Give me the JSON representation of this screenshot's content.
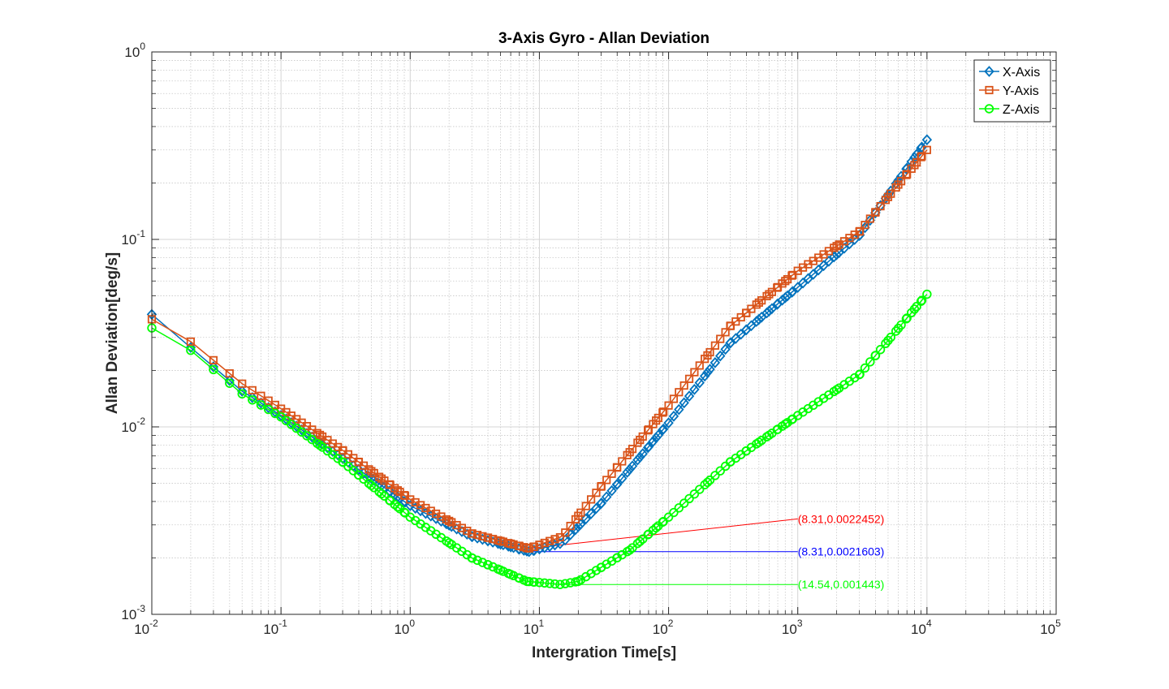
{
  "chart_data": {
    "type": "line",
    "title": "3-Axis Gyro - Allan Deviation",
    "xlabel": "Intergration Time[s]",
    "ylabel": "Allan Deviation[deg/s]",
    "xscale": "log",
    "yscale": "log",
    "xlim": [
      0.01,
      100000
    ],
    "ylim": [
      0.001,
      1
    ],
    "grid": true,
    "minor_grid": true,
    "legend_position": "top-right",
    "x_ticks": [
      {
        "base": "10",
        "exp": "-2",
        "value": 0.01
      },
      {
        "base": "10",
        "exp": "-1",
        "value": 0.1
      },
      {
        "base": "10",
        "exp": "0",
        "value": 1
      },
      {
        "base": "10",
        "exp": "1",
        "value": 10
      },
      {
        "base": "10",
        "exp": "2",
        "value": 100
      },
      {
        "base": "10",
        "exp": "3",
        "value": 1000
      },
      {
        "base": "10",
        "exp": "4",
        "value": 10000
      },
      {
        "base": "10",
        "exp": "5",
        "value": 100000
      }
    ],
    "y_ticks": [
      {
        "base": "10",
        "exp": "-3",
        "value": 0.001
      },
      {
        "base": "10",
        "exp": "-2",
        "value": 0.01
      },
      {
        "base": "10",
        "exp": "-1",
        "value": 0.1
      },
      {
        "base": "10",
        "exp": "0",
        "value": 1
      }
    ],
    "series": [
      {
        "name": "X-Axis",
        "color": "#0072BD",
        "marker": "diamond",
        "points": [
          [
            0.01,
            0.0398
          ],
          [
            0.05,
            0.0155
          ],
          [
            0.1,
            0.0115
          ],
          [
            0.3,
            0.0068
          ],
          [
            1,
            0.0038
          ],
          [
            3,
            0.0026
          ],
          [
            8.31,
            0.0021603
          ],
          [
            15,
            0.0024
          ],
          [
            30,
            0.0039
          ],
          [
            100,
            0.0105
          ],
          [
            300,
            0.028
          ],
          [
            1000,
            0.0555
          ],
          [
            3000,
            0.105
          ],
          [
            10000,
            0.34
          ]
        ]
      },
      {
        "name": "Y-Axis",
        "color": "#D95319",
        "marker": "square",
        "points": [
          [
            0.01,
            0.0375
          ],
          [
            0.02,
            0.0285
          ],
          [
            0.05,
            0.017
          ],
          [
            0.1,
            0.0125
          ],
          [
            0.3,
            0.0075
          ],
          [
            1,
            0.0041
          ],
          [
            3,
            0.0027
          ],
          [
            8.31,
            0.0022452
          ],
          [
            15,
            0.0026
          ],
          [
            30,
            0.0048
          ],
          [
            100,
            0.013
          ],
          [
            300,
            0.0345
          ],
          [
            1000,
            0.068
          ],
          [
            3000,
            0.11
          ],
          [
            10000,
            0.3
          ]
        ]
      },
      {
        "name": "Z-Axis",
        "color": "#00FF00",
        "marker": "circle",
        "points": [
          [
            0.01,
            0.0337
          ],
          [
            0.02,
            0.0256
          ],
          [
            0.05,
            0.015
          ],
          [
            0.1,
            0.0113
          ],
          [
            0.3,
            0.0065
          ],
          [
            1,
            0.0033
          ],
          [
            3,
            0.002
          ],
          [
            8,
            0.0015
          ],
          [
            14.54,
            0.001443
          ],
          [
            20,
            0.0015
          ],
          [
            50,
            0.0022
          ],
          [
            100,
            0.0033
          ],
          [
            300,
            0.0065
          ],
          [
            1000,
            0.0115
          ],
          [
            3000,
            0.019
          ],
          [
            10000,
            0.051
          ]
        ]
      }
    ],
    "annotations": [
      {
        "text": "(8.31,0.0022452)",
        "color": "#FF0000",
        "from": [
          8.31,
          0.0022452
        ],
        "to": [
          1000,
          0.00323
        ]
      },
      {
        "text": "(8.31,0.0021603)",
        "color": "#0000FF",
        "from": [
          8.31,
          0.0021603
        ],
        "to": [
          1000,
          0.0021603
        ]
      },
      {
        "text": "(14.54,0.001443)",
        "color": "#00FF00",
        "from": [
          14.54,
          0.001443
        ],
        "to": [
          1000,
          0.001443
        ]
      }
    ]
  }
}
